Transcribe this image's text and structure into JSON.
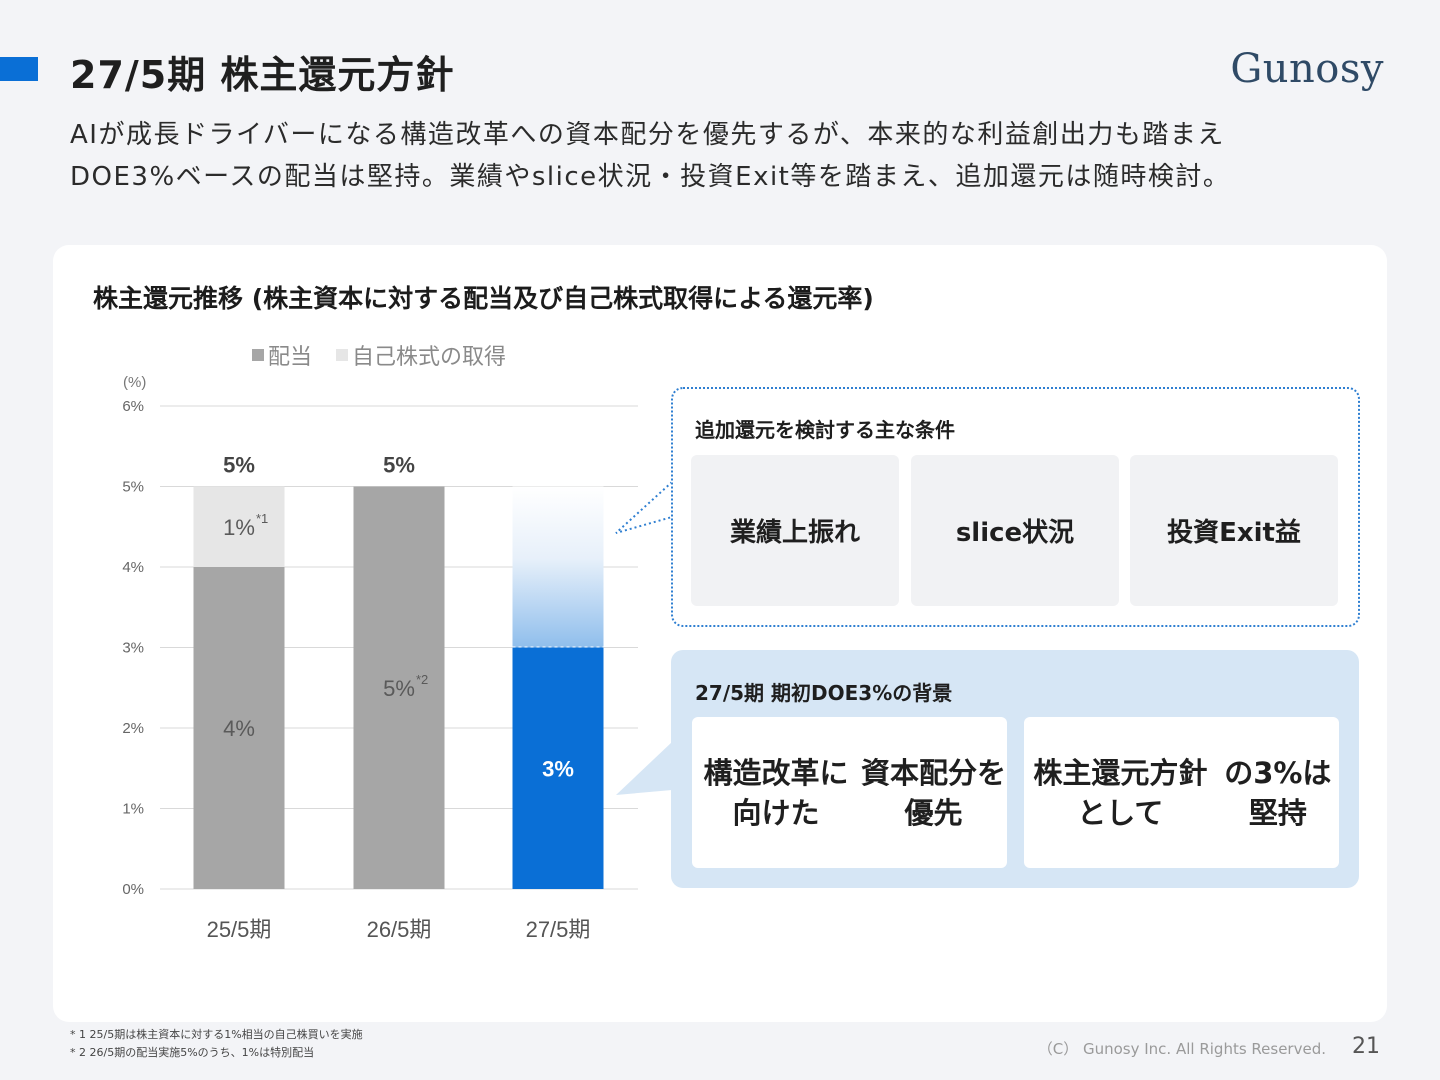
{
  "header": {
    "title": "27/5期 株主還元方針",
    "brand": "Gunosy",
    "subtitle_line1": "AIが成長ドライバーになる構造改革への資本配分を優先するが、本来的な利益創出力も踏まえ",
    "subtitle_line2": "DOE3%ベースの配当は堅持。業績やslice状況・投資Exit等を踏まえ、追加還元は随時検討。"
  },
  "card": {
    "title": "株主還元推移 (株主資本に対する配当及び自己株式取得による還元率)"
  },
  "chart_data": {
    "type": "bar",
    "stacked": true,
    "unit_label": "(%)",
    "categories": [
      "25/5期",
      "26/5期",
      "27/5期"
    ],
    "y_ticks": [
      "0%",
      "1%",
      "2%",
      "3%",
      "4%",
      "5%",
      "6%"
    ],
    "ylim": [
      0,
      6
    ],
    "legend": [
      "配当",
      "自己株式の取得"
    ],
    "series": [
      {
        "name": "配当",
        "values": [
          4,
          5,
          3
        ],
        "colors": [
          "#a6a6a6",
          "#a6a6a6",
          "#0a6fd6"
        ]
      },
      {
        "name": "自己株式の取得",
        "values": [
          1,
          0,
          0
        ],
        "colors": [
          "#e6e6e6",
          "#e6e6e6",
          "#e6e6e6"
        ]
      }
    ],
    "upside_potential": {
      "category": "27/5期",
      "from": 3,
      "to": 5
    },
    "totals": [
      "5%",
      "5%",
      ""
    ],
    "segment_labels": [
      {
        "category": "25/5期",
        "series": "配当",
        "text": "4%",
        "note": ""
      },
      {
        "category": "25/5期",
        "series": "自己株式の取得",
        "text": "1%",
        "note": "*1"
      },
      {
        "category": "26/5期",
        "series": "配当",
        "text": "5%",
        "note": "*2"
      },
      {
        "category": "27/5期",
        "series": "配当",
        "text": "3%",
        "note": ""
      }
    ],
    "colors": {
      "dividend": "#a6a6a6",
      "buyback": "#e6e6e6",
      "dividend_27": "#0a6fd6",
      "grid": "#d9d9d9"
    }
  },
  "conditions": {
    "title": "追加還元を検討する主な条件",
    "items": [
      "業績上振れ",
      "slice状況",
      "投資Exit益"
    ]
  },
  "background": {
    "title": "27/5期 期初DOE3%の背景",
    "items": [
      {
        "line1": "構造改革に向けた",
        "line2": "資本配分を優先"
      },
      {
        "line1": "株主還元方針として",
        "line2": "の3%は堅持"
      }
    ]
  },
  "footer": {
    "note1": "* 1 25/5期は株主資本に対する1%相当の自己株買いを実施",
    "note2": "* 2 26/5期の配当実施5%のうち、1%は特別配当",
    "copyright": "（C） Gunosy Inc. All Rights Reserved.",
    "page": "21"
  },
  "colors": {
    "accent": "#0a6fd6",
    "brand": "#2f4a66"
  }
}
